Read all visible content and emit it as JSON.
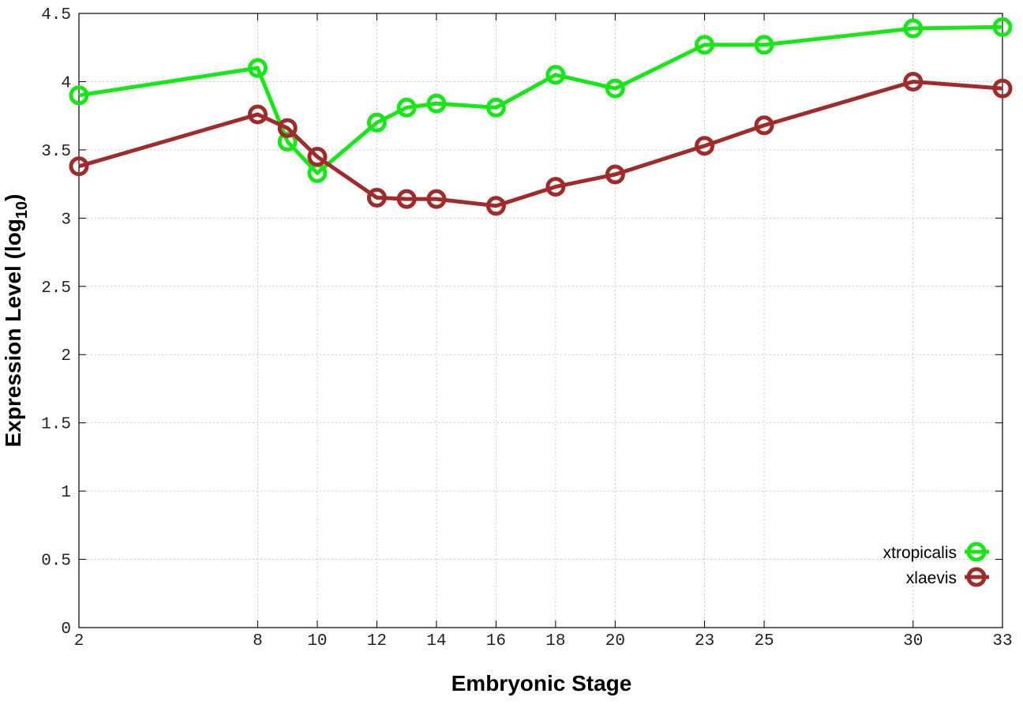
{
  "chart_data": {
    "type": "line",
    "xlabel": "Embryonic Stage",
    "ylabel": [
      "Expression Level (log",
      "10",
      ")"
    ],
    "x": [
      2,
      8,
      9,
      10,
      12,
      13,
      14,
      16,
      18,
      20,
      23,
      25,
      30,
      33
    ],
    "series": [
      {
        "name": "xtropicalis",
        "color": "#19e619",
        "values": [
          3.9,
          4.1,
          3.56,
          3.33,
          3.7,
          3.81,
          3.84,
          3.81,
          4.05,
          3.95,
          4.27,
          4.27,
          4.39,
          4.4
        ]
      },
      {
        "name": "xlaevis",
        "color": "#a02b2b",
        "values": [
          3.38,
          3.76,
          3.66,
          3.45,
          3.15,
          3.14,
          3.14,
          3.09,
          3.23,
          3.32,
          3.53,
          3.68,
          4.0,
          3.95
        ]
      }
    ],
    "xlim": [
      2,
      33
    ],
    "ylim": [
      0,
      4.5
    ],
    "xticks": [
      2,
      8,
      10,
      12,
      14,
      16,
      18,
      20,
      23,
      25,
      30,
      33
    ],
    "yticks": [
      0,
      0.5,
      1,
      1.5,
      2,
      2.5,
      3,
      3.5,
      4,
      4.5
    ],
    "grid": true,
    "legend": "lower right"
  }
}
